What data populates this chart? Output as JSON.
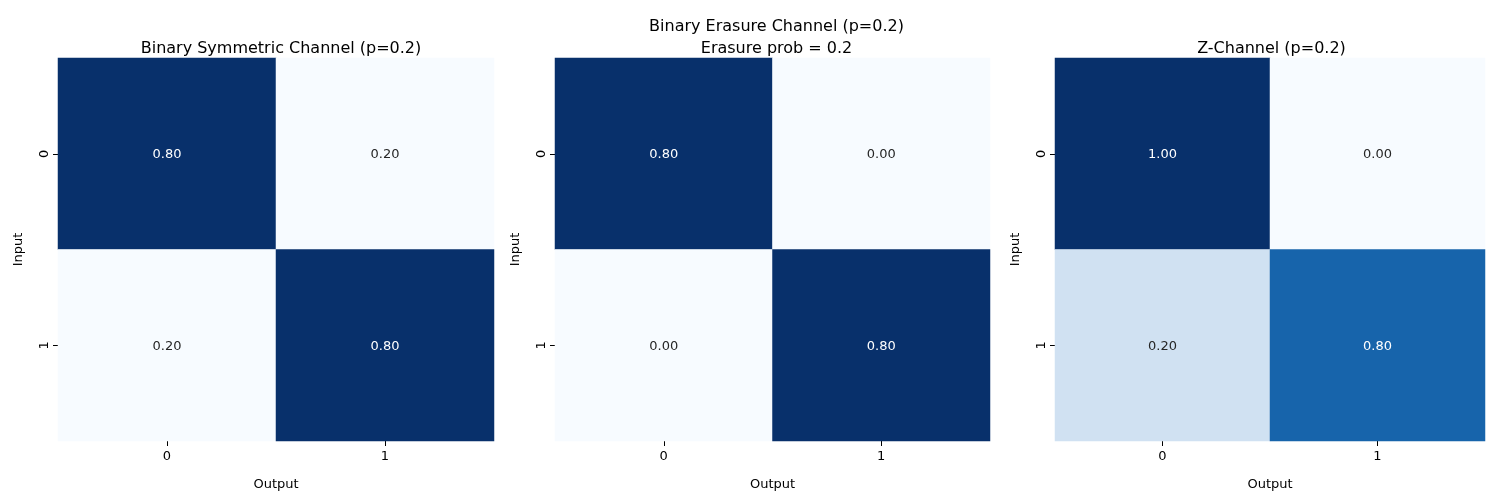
{
  "chart_data": [
    {
      "type": "heatmap",
      "title": "Binary Symmetric Channel (p=0.2)",
      "xlabel": "Output",
      "ylabel": "Input",
      "categories": [
        "0",
        "1"
      ],
      "y_categories": [
        "0",
        "1"
      ],
      "cells": [
        [
          0.8,
          0.2
        ],
        [
          0.2,
          0.8
        ]
      ],
      "cell_labels": [
        [
          "0.80",
          "0.20"
        ],
        [
          "0.20",
          "0.80"
        ]
      ]
    },
    {
      "type": "heatmap",
      "title": "Binary Erasure Channel (p=0.2)",
      "subtitle": "Erasure prob = 0.2",
      "xlabel": "Output",
      "ylabel": "Input",
      "categories": [
        "0",
        "1"
      ],
      "y_categories": [
        "0",
        "1"
      ],
      "cells": [
        [
          0.8,
          0.0
        ],
        [
          0.0,
          0.8
        ]
      ],
      "cell_labels": [
        [
          "0.80",
          "0.00"
        ],
        [
          "0.00",
          "0.80"
        ]
      ]
    },
    {
      "type": "heatmap",
      "title": "Z-Channel (p=0.2)",
      "xlabel": "Output",
      "ylabel": "Input",
      "categories": [
        "0",
        "1"
      ],
      "y_categories": [
        "0",
        "1"
      ],
      "cells": [
        [
          1.0,
          0.0
        ],
        [
          0.2,
          0.8
        ]
      ],
      "cell_labels": [
        [
          "1.00",
          "0.00"
        ],
        [
          "0.20",
          "0.80"
        ]
      ]
    }
  ]
}
